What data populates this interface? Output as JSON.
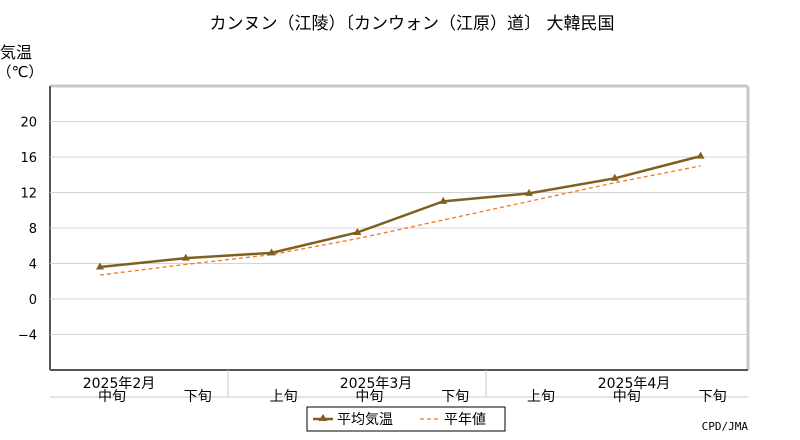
{
  "chart_data": {
    "type": "line",
    "title": "カンヌン（江陵）〔カンウォン（江原）道〕 大韓民国",
    "ylabel": "気温",
    "yunit": "（℃）",
    "ylim": [
      -8,
      24
    ],
    "yticks": [
      20,
      16,
      12,
      8,
      4,
      0,
      -4
    ],
    "ytick_labels": [
      "20",
      "16",
      "12",
      "8",
      "4",
      "0",
      "−4"
    ],
    "grid": true,
    "categories": [
      "中旬",
      "下旬",
      "上旬",
      "中旬",
      "下旬",
      "上旬",
      "中旬",
      "下旬"
    ],
    "months": [
      "2025年2月",
      "2025年3月",
      "2025年4月"
    ],
    "series": [
      {
        "name": "平均気温",
        "color": "#806020",
        "style": "solid-marker",
        "values": [
          3.6,
          4.6,
          5.2,
          7.5,
          11.0,
          11.9,
          13.6,
          16.1
        ]
      },
      {
        "name": "平年値",
        "color": "#f07820",
        "style": "dashed",
        "values": [
          2.7,
          3.9,
          5.0,
          6.8,
          8.9,
          11.0,
          13.1,
          15.0
        ]
      }
    ],
    "legend_position": "bottom-center",
    "credit": "CPD/JMA"
  }
}
